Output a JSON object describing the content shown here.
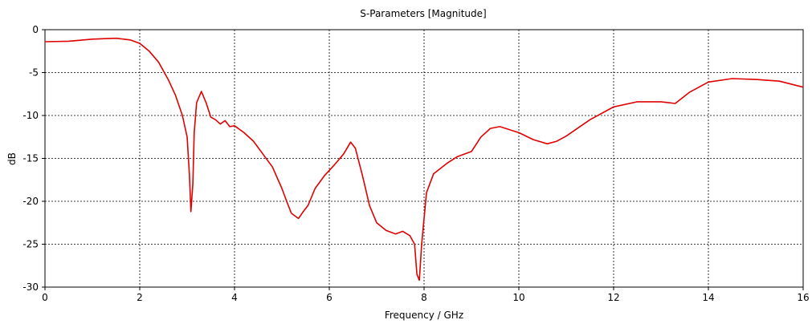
{
  "chart_data": {
    "type": "line",
    "title": "S-Parameters [Magnitude]",
    "xlabel": "Frequency / GHz",
    "ylabel": "dB",
    "xlim": [
      0,
      16
    ],
    "ylim": [
      -30,
      0
    ],
    "x_ticks": [
      "0",
      "2",
      "4",
      "6",
      "8",
      "10",
      "12",
      "14",
      "16"
    ],
    "y_ticks": [
      "0",
      "-5",
      "-10",
      "-15",
      "-20",
      "-25",
      "-30"
    ],
    "grid": true,
    "line_color": "#e00000",
    "series": [
      {
        "points": [
          [
            0.0,
            -1.4
          ],
          [
            0.5,
            -1.35
          ],
          [
            1.0,
            -1.1
          ],
          [
            1.5,
            -1.0
          ],
          [
            1.8,
            -1.2
          ],
          [
            2.0,
            -1.6
          ],
          [
            2.2,
            -2.5
          ],
          [
            2.4,
            -3.8
          ],
          [
            2.6,
            -5.8
          ],
          [
            2.75,
            -7.6
          ],
          [
            2.9,
            -10.0
          ],
          [
            3.0,
            -12.5
          ],
          [
            3.05,
            -17.0
          ],
          [
            3.08,
            -21.2
          ],
          [
            3.12,
            -18.0
          ],
          [
            3.15,
            -12.0
          ],
          [
            3.2,
            -8.5
          ],
          [
            3.3,
            -7.2
          ],
          [
            3.4,
            -8.5
          ],
          [
            3.5,
            -10.2
          ],
          [
            3.6,
            -10.5
          ],
          [
            3.7,
            -11.0
          ],
          [
            3.8,
            -10.6
          ],
          [
            3.9,
            -11.3
          ],
          [
            4.0,
            -11.2
          ],
          [
            4.2,
            -12.0
          ],
          [
            4.4,
            -13.0
          ],
          [
            4.6,
            -14.5
          ],
          [
            4.8,
            -16.0
          ],
          [
            5.0,
            -18.5
          ],
          [
            5.1,
            -20.0
          ],
          [
            5.2,
            -21.4
          ],
          [
            5.35,
            -22.0
          ],
          [
            5.45,
            -21.2
          ],
          [
            5.55,
            -20.5
          ],
          [
            5.7,
            -18.5
          ],
          [
            5.9,
            -17.0
          ],
          [
            6.1,
            -15.8
          ],
          [
            6.3,
            -14.5
          ],
          [
            6.45,
            -13.1
          ],
          [
            6.55,
            -13.8
          ],
          [
            6.7,
            -17.0
          ],
          [
            6.85,
            -20.5
          ],
          [
            7.0,
            -22.5
          ],
          [
            7.2,
            -23.4
          ],
          [
            7.4,
            -23.8
          ],
          [
            7.55,
            -23.5
          ],
          [
            7.7,
            -24.0
          ],
          [
            7.8,
            -25.0
          ],
          [
            7.85,
            -28.5
          ],
          [
            7.9,
            -29.2
          ],
          [
            7.95,
            -25.0
          ],
          [
            8.05,
            -19.0
          ],
          [
            8.2,
            -16.8
          ],
          [
            8.5,
            -15.5
          ],
          [
            8.7,
            -14.8
          ],
          [
            9.0,
            -14.2
          ],
          [
            9.2,
            -12.5
          ],
          [
            9.4,
            -11.5
          ],
          [
            9.6,
            -11.3
          ],
          [
            10.0,
            -12.0
          ],
          [
            10.3,
            -12.8
          ],
          [
            10.6,
            -13.3
          ],
          [
            10.8,
            -13.0
          ],
          [
            11.0,
            -12.4
          ],
          [
            11.5,
            -10.5
          ],
          [
            12.0,
            -9.0
          ],
          [
            12.5,
            -8.4
          ],
          [
            13.0,
            -8.4
          ],
          [
            13.3,
            -8.6
          ],
          [
            13.6,
            -7.3
          ],
          [
            14.0,
            -6.1
          ],
          [
            14.5,
            -5.7
          ],
          [
            15.0,
            -5.8
          ],
          [
            15.5,
            -6.0
          ],
          [
            16.0,
            -6.7
          ]
        ]
      }
    ]
  }
}
